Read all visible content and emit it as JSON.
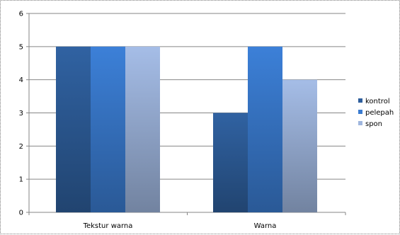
{
  "chart_data": {
    "type": "bar",
    "title": "",
    "xlabel": "",
    "ylabel": "",
    "categories": [
      "Tekstur warna",
      "Warna"
    ],
    "series": [
      {
        "name": "kontrol",
        "values": [
          5,
          3
        ],
        "color": "#2e5e9c"
      },
      {
        "name": "pelepah",
        "values": [
          5,
          5
        ],
        "color": "#3a7bd0"
      },
      {
        "name": "spon",
        "values": [
          5,
          4
        ],
        "color": "#9fb6de"
      }
    ],
    "ylim": [
      0,
      6
    ],
    "yticks": [
      "0",
      "1",
      "2",
      "3",
      "4",
      "5",
      "6"
    ],
    "grid": true,
    "legend": "right",
    "gradient": true
  }
}
